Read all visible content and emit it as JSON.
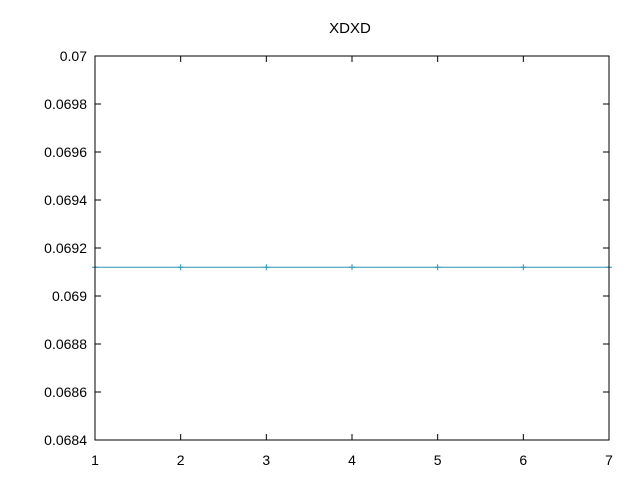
{
  "chart_data": {
    "type": "line",
    "title": "XDXD",
    "xlabel": "",
    "ylabel": "",
    "xlim": [
      1,
      7
    ],
    "ylim": [
      0.0684,
      0.07
    ],
    "x_ticks": [
      1,
      2,
      3,
      4,
      5,
      6,
      7
    ],
    "x_tick_labels": [
      "1",
      "2",
      "3",
      "4",
      "5",
      "6",
      "7"
    ],
    "y_ticks": [
      0.0684,
      0.0686,
      0.0688,
      0.069,
      0.0692,
      0.0694,
      0.0696,
      0.0698,
      0.07
    ],
    "y_tick_labels": [
      "0.0684",
      "0.0686",
      "0.0688",
      "0.069",
      "0.0692",
      "0.0694",
      "0.0696",
      "0.0698",
      "0.07"
    ],
    "grid": false,
    "series": [
      {
        "color": "#2a95b4",
        "marker": "plus",
        "x": [
          1,
          2,
          3,
          4,
          5,
          6,
          7
        ],
        "y": [
          0.06912,
          0.06912,
          0.06912,
          0.06912,
          0.06912,
          0.06912,
          0.06912
        ]
      }
    ]
  }
}
